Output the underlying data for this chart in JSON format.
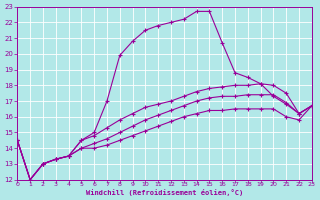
{
  "background_color": "#b2e8e8",
  "grid_color": "#c8e8e8",
  "line_color": "#990099",
  "xlabel": "Windchill (Refroidissement éolien,°C)",
  "xlabel_color": "#990099",
  "tick_color": "#990099",
  "spine_color": "#990099",
  "xlim": [
    0,
    23
  ],
  "ylim": [
    12,
    23
  ],
  "yticks": [
    12,
    13,
    14,
    15,
    16,
    17,
    18,
    19,
    20,
    21,
    22,
    23
  ],
  "xticks": [
    0,
    1,
    2,
    3,
    4,
    5,
    6,
    7,
    8,
    9,
    10,
    11,
    12,
    13,
    14,
    15,
    16,
    17,
    18,
    19,
    20,
    21,
    22,
    23
  ],
  "curves": [
    [
      14.5,
      12.0,
      13.0,
      13.3,
      13.5,
      14.5,
      15.0,
      17.0,
      19.9,
      20.8,
      21.5,
      21.8,
      22.0,
      22.2,
      22.7,
      22.7,
      20.7,
      18.8,
      18.5,
      18.1,
      17.3,
      16.8,
      16.2,
      16.7
    ],
    [
      14.5,
      12.0,
      13.0,
      13.3,
      13.5,
      14.5,
      14.8,
      15.3,
      15.8,
      16.2,
      16.6,
      16.8,
      17.0,
      17.3,
      17.6,
      17.8,
      17.9,
      18.0,
      18.0,
      18.1,
      18.0,
      17.5,
      16.2,
      16.7
    ],
    [
      14.5,
      12.0,
      13.0,
      13.3,
      13.5,
      14.0,
      14.3,
      14.6,
      15.0,
      15.4,
      15.8,
      16.1,
      16.4,
      16.7,
      17.0,
      17.2,
      17.3,
      17.3,
      17.4,
      17.4,
      17.4,
      16.9,
      16.2,
      16.7
    ],
    [
      14.5,
      12.0,
      13.0,
      13.3,
      13.5,
      14.0,
      14.0,
      14.2,
      14.5,
      14.8,
      15.1,
      15.4,
      15.7,
      16.0,
      16.2,
      16.4,
      16.4,
      16.5,
      16.5,
      16.5,
      16.5,
      16.0,
      15.8,
      16.7
    ]
  ]
}
